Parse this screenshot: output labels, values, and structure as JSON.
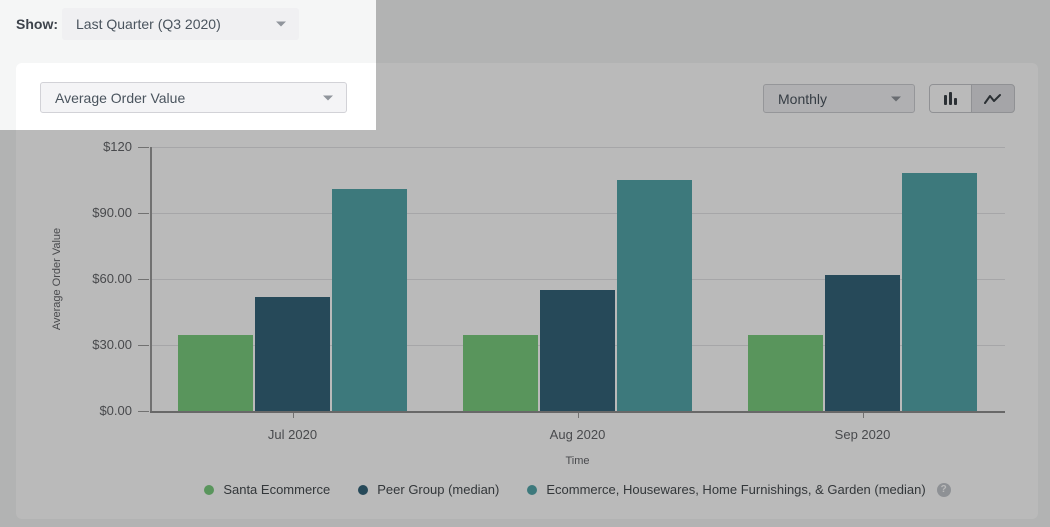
{
  "toolbar": {
    "show_label": "Show:",
    "period_dropdown": {
      "value": "Last Quarter (Q3 2020)"
    },
    "metric_dropdown": {
      "value": "Average Order Value"
    },
    "granularity_dropdown": {
      "value": "Monthly"
    },
    "view_toggle": {
      "active": "bar",
      "options": [
        "bar-chart-icon",
        "line-chart-icon"
      ]
    }
  },
  "chart_data": {
    "type": "bar",
    "categories": [
      "Jul 2020",
      "Aug 2020",
      "Sep 2020"
    ],
    "series": [
      {
        "name": "Santa Ecommerce",
        "color": "#7acc7e",
        "values": [
          34.5,
          34.5,
          34.5
        ]
      },
      {
        "name": "Peer Group (median)",
        "color": "#35647b",
        "values": [
          52,
          55,
          62
        ]
      },
      {
        "name": "Ecommerce, Housewares, Home Furnishings, & Garden (median)",
        "color": "#54a7ab",
        "values": [
          101,
          105,
          108
        ]
      }
    ],
    "xlabel": "Time",
    "ylabel": "Average Order Value",
    "ylim": [
      0,
      120
    ],
    "yticks": [
      {
        "value": 0,
        "label": "$0.00"
      },
      {
        "value": 30,
        "label": "$30.00"
      },
      {
        "value": 60,
        "label": "$60.00"
      },
      {
        "value": 90,
        "label": "$90.00"
      },
      {
        "value": 120,
        "label": "$120"
      }
    ],
    "grid": true,
    "legend_position": "bottom",
    "legend_help_icon": "?"
  },
  "colors": {
    "page_background": "#f5f6f6",
    "card_background": "#ffffff",
    "overlay": "rgba(0,0,0,0.27)",
    "axis_text": "#64666a",
    "legend_text": "#474c50"
  }
}
